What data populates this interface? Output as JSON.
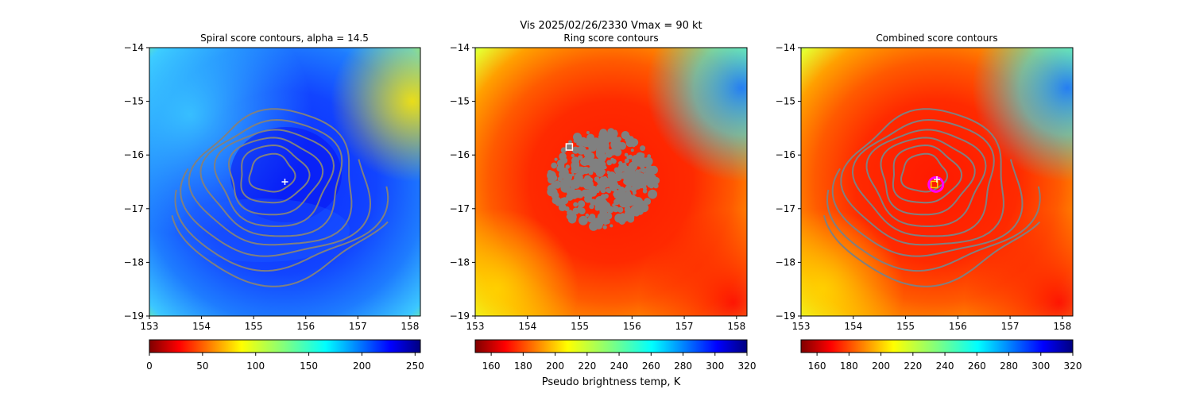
{
  "suptitle": "Vis  2025/02/26/2330    Vmax = 90 kt",
  "colorbar_label": "Pseudo brightness temp, K",
  "colors": {
    "contour": "#808080",
    "marker": "#ffffff",
    "center_circle": "#ff00ff",
    "center_square": "#ffd000"
  },
  "chart_data": [
    {
      "type": "heatmap",
      "title": "Spiral score contours, alpha = 14.5",
      "xlim": [
        153,
        158.2
      ],
      "ylim": [
        -19,
        -14
      ],
      "xticks": [
        "153",
        "154",
        "155",
        "156",
        "157",
        "158"
      ],
      "yticks": [
        "−14",
        "−15",
        "−16",
        "−17",
        "−18",
        "−19"
      ],
      "colormap": "jet_r",
      "colorbar_ticks": [
        "0",
        "50",
        "100",
        "150",
        "200",
        "250"
      ],
      "colorbar_range": [
        0,
        255
      ],
      "center_marker": {
        "symbol": "+",
        "lon": 155.6,
        "lat": -16.5
      },
      "contour_count": 9
    },
    {
      "type": "heatmap",
      "title": "Ring score contours",
      "xlim": [
        153,
        158.2
      ],
      "ylim": [
        -19,
        -14
      ],
      "xticks": [
        "153",
        "154",
        "155",
        "156",
        "157",
        "158"
      ],
      "yticks": [
        "−14",
        "−15",
        "−16",
        "−17",
        "−18",
        "−19"
      ],
      "colormap": "jet_r",
      "colorbar_ticks": [
        "160",
        "180",
        "200",
        "220",
        "240",
        "260",
        "280",
        "300",
        "320"
      ],
      "colorbar_range": [
        150,
        320
      ],
      "ring_score_marker": {
        "symbol": "square",
        "lon": 154.8,
        "lat": -15.85
      },
      "ring_region_center": {
        "lon": 155.5,
        "lat": -16.5
      }
    },
    {
      "type": "heatmap",
      "title": "Combined score contours",
      "xlim": [
        153,
        158.2
      ],
      "ylim": [
        -19,
        -14
      ],
      "xticks": [
        "153",
        "154",
        "155",
        "156",
        "157",
        "158"
      ],
      "yticks": [
        "−14",
        "−15",
        "−16",
        "−17",
        "−18",
        "−19"
      ],
      "colormap": "jet_r",
      "colorbar_ticks": [
        "160",
        "180",
        "200",
        "220",
        "240",
        "260",
        "280",
        "300",
        "320"
      ],
      "colorbar_range": [
        150,
        320
      ],
      "center_marker": {
        "symbol": "+",
        "lon": 155.6,
        "lat": -16.5
      },
      "combined_center": {
        "symbol": "square+circle",
        "lon": 155.55,
        "lat": -16.55
      },
      "contour_count": 9
    }
  ]
}
